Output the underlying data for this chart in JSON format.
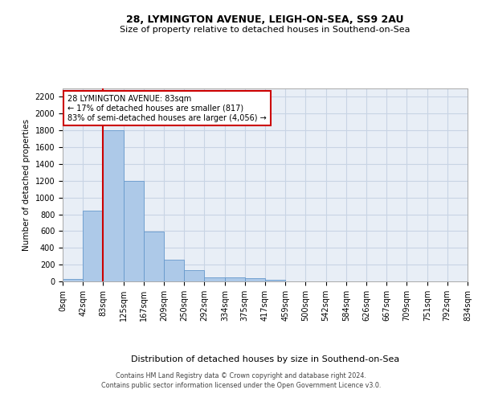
{
  "title_line1": "28, LYMINGTON AVENUE, LEIGH-ON-SEA, SS9 2AU",
  "title_line2": "Size of property relative to detached houses in Southend-on-Sea",
  "xlabel": "Distribution of detached houses by size in Southend-on-Sea",
  "ylabel": "Number of detached properties",
  "footer_line1": "Contains HM Land Registry data © Crown copyright and database right 2024.",
  "footer_line2": "Contains public sector information licensed under the Open Government Licence v3.0.",
  "annotation_line1": "28 LYMINGTON AVENUE: 83sqm",
  "annotation_line2": "← 17% of detached houses are smaller (817)",
  "annotation_line3": "83% of semi-detached houses are larger (4,056) →",
  "bar_color": "#adc9e8",
  "bar_edge_color": "#6699cc",
  "grid_color": "#c8d4e4",
  "background_color": "#e8eef6",
  "marker_line_color": "#cc0000",
  "annotation_box_color": "#cc0000",
  "bin_edges": [
    0,
    42,
    83,
    125,
    167,
    209,
    250,
    292,
    334,
    375,
    417,
    459,
    500,
    542,
    584,
    626,
    667,
    709,
    751,
    792,
    834
  ],
  "bin_labels": [
    "0sqm",
    "42sqm",
    "83sqm",
    "125sqm",
    "167sqm",
    "209sqm",
    "250sqm",
    "292sqm",
    "334sqm",
    "375sqm",
    "417sqm",
    "459sqm",
    "500sqm",
    "542sqm",
    "584sqm",
    "626sqm",
    "667sqm",
    "709sqm",
    "751sqm",
    "792sqm",
    "834sqm"
  ],
  "bar_heights": [
    25,
    845,
    1800,
    1200,
    590,
    255,
    135,
    45,
    45,
    35,
    20,
    0,
    0,
    0,
    0,
    0,
    0,
    0,
    0,
    0
  ],
  "ylim": [
    0,
    2300
  ],
  "yticks": [
    0,
    200,
    400,
    600,
    800,
    1000,
    1200,
    1400,
    1600,
    1800,
    2000,
    2200
  ],
  "property_size": 83,
  "marker_bin_index": 2,
  "title1_fontsize": 9,
  "title2_fontsize": 8,
  "ylabel_fontsize": 7.5,
  "xlabel_fontsize": 8,
  "tick_fontsize": 7,
  "footer_fontsize": 5.8,
  "annot_fontsize": 7
}
